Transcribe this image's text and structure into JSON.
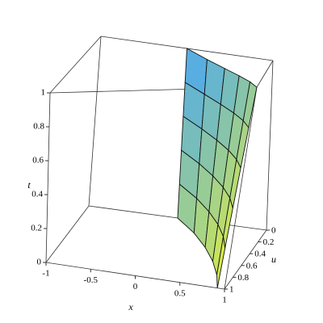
{
  "chart_data": {
    "type": "surface",
    "x_label": "x",
    "y_label": "u",
    "z_label": "t",
    "xlim": [
      -1,
      1
    ],
    "xticks": [
      -1,
      -0.5,
      0,
      0.5,
      1
    ],
    "ylim": [
      0,
      1
    ],
    "yticks": [
      0,
      0.2,
      0.4,
      0.6,
      0.8,
      1
    ],
    "zlim": [
      0,
      1
    ],
    "zticks": [
      0,
      0.2,
      0.4,
      0.6,
      0.8,
      1
    ],
    "y": [
      0,
      0.2,
      0.4,
      0.6,
      0.8,
      1
    ],
    "z": [
      0,
      0.2,
      0.4,
      0.6,
      0.8,
      1
    ],
    "x_values": [
      [
        0,
        0.28,
        0.5,
        0.68,
        0.82,
        0.92
      ],
      [
        0,
        0.284,
        0.51,
        0.694,
        0.836,
        0.936
      ],
      [
        0,
        0.288,
        0.52,
        0.708,
        0.852,
        0.952
      ],
      [
        0,
        0.292,
        0.53,
        0.722,
        0.868,
        0.968
      ],
      [
        0,
        0.296,
        0.54,
        0.736,
        0.884,
        0.984
      ],
      [
        0,
        0.3,
        0.55,
        0.75,
        0.9,
        1
      ]
    ],
    "colors": [
      "#e6f23c",
      "#48a6f2"
    ]
  }
}
